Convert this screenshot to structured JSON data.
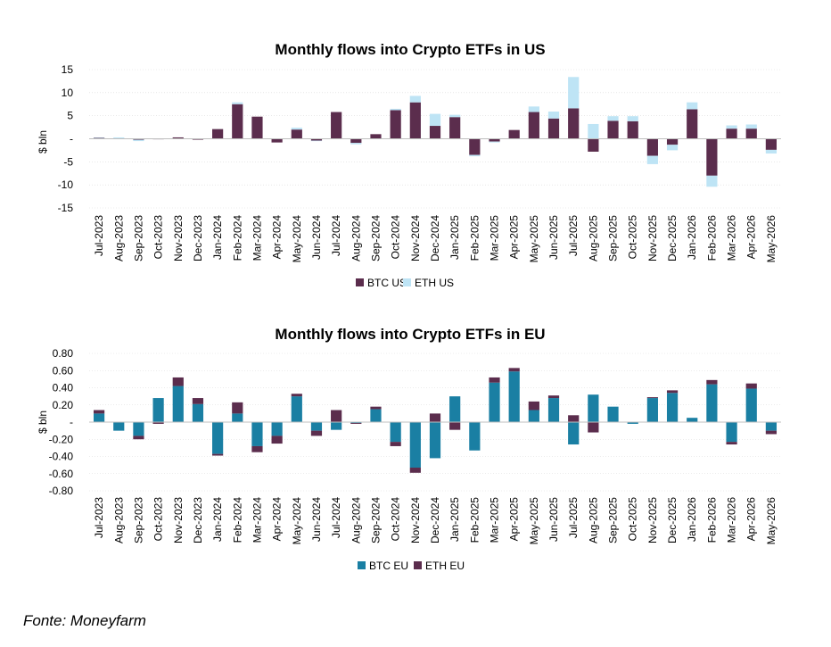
{
  "chart_data": [
    {
      "type": "bar",
      "stacked": true,
      "title": "Monthly flows into Crypto ETFs in US",
      "ylabel": "$ bln",
      "ylim": [
        -15,
        15
      ],
      "yticks": [
        15,
        10,
        5,
        0,
        -5,
        -10,
        -15
      ],
      "ytick_labels": [
        "15",
        "10",
        "5",
        "-",
        "-5",
        "-10",
        "-15"
      ],
      "grid": true,
      "legend_position": "bottom",
      "categories": [
        "Jul-2023",
        "Aug-2023",
        "Sep-2023",
        "Oct-2023",
        "Nov-2023",
        "Dec-2023",
        "Jan-2024",
        "Feb-2024",
        "Mar-2024",
        "Apr-2024",
        "May-2024",
        "Jun-2024",
        "Jul-2024",
        "Aug-2024",
        "Sep-2024",
        "Oct-2024",
        "Nov-2024",
        "Dec-2024",
        "Jan-2025",
        "Feb-2025",
        "Mar-2025",
        "Apr-2025",
        "May-2025",
        "Jun-2025",
        "Jul-2025",
        "Aug-2025",
        "Sep-2025",
        "Oct-2025",
        "Nov-2025",
        "Dec-2025",
        "Jan-2026",
        "Feb-2026",
        "Mar-2026",
        "Apr-2026",
        "May-2026"
      ],
      "series": [
        {
          "name": "BTC US",
          "color": "#5b2d4d",
          "values": [
            0.2,
            0.1,
            -0.2,
            -0.1,
            0.3,
            -0.2,
            2.1,
            7.5,
            4.8,
            -0.8,
            2.0,
            -0.4,
            5.8,
            -0.9,
            1.0,
            6.2,
            7.9,
            2.8,
            4.7,
            -3.5,
            -0.6,
            1.9,
            5.8,
            4.4,
            6.6,
            -2.8,
            3.9,
            3.8,
            -3.7,
            -1.3,
            6.4,
            -8.0,
            2.2,
            2.2,
            -2.4
          ]
        },
        {
          "name": "ETH US",
          "color": "#bee4f5",
          "values": [
            0.1,
            0.2,
            -0.3,
            0.0,
            0.0,
            0.0,
            0.0,
            0.4,
            0.0,
            0.0,
            0.4,
            -0.1,
            0.0,
            -0.3,
            0.0,
            0.3,
            1.4,
            2.6,
            0.5,
            -0.3,
            -0.2,
            0.0,
            1.2,
            1.5,
            6.8,
            3.2,
            1.0,
            1.1,
            -1.8,
            -1.2,
            1.5,
            -2.4,
            0.7,
            0.9,
            -0.8
          ]
        }
      ]
    },
    {
      "type": "bar",
      "stacked": true,
      "title": "Monthly flows into Crypto ETFs in EU",
      "ylabel": "$ bln",
      "ylim": [
        -0.8,
        0.8
      ],
      "yticks": [
        0.8,
        0.6,
        0.4,
        0.2,
        0,
        -0.2,
        -0.4,
        -0.6,
        -0.8
      ],
      "ytick_labels": [
        "0.80",
        "0.60",
        "0.40",
        "0.20",
        "-",
        "-0.20",
        "-0.40",
        "-0.60",
        "-0.80"
      ],
      "grid": true,
      "legend_position": "bottom",
      "categories": [
        "Jul-2023",
        "Aug-2023",
        "Sep-2023",
        "Oct-2023",
        "Nov-2023",
        "Dec-2023",
        "Jan-2024",
        "Feb-2024",
        "Mar-2024",
        "Apr-2024",
        "May-2024",
        "Jun-2024",
        "Jul-2024",
        "Aug-2024",
        "Sep-2024",
        "Oct-2024",
        "Nov-2024",
        "Dec-2024",
        "Jan-2025",
        "Feb-2025",
        "Mar-2025",
        "Apr-2025",
        "May-2025",
        "Jun-2025",
        "Jul-2025",
        "Aug-2025",
        "Sep-2025",
        "Oct-2025",
        "Nov-2025",
        "Dec-2025",
        "Jan-2026",
        "Feb-2026",
        "Mar-2026",
        "Apr-2026",
        "May-2026"
      ],
      "series": [
        {
          "name": "BTC EU",
          "color": "#1a7fa3",
          "values": [
            0.1,
            -0.1,
            -0.16,
            0.28,
            0.42,
            0.21,
            -0.37,
            0.1,
            -0.28,
            -0.16,
            0.3,
            -0.1,
            -0.09,
            -0.01,
            0.15,
            -0.23,
            -0.53,
            -0.42,
            0.3,
            -0.33,
            0.46,
            0.59,
            0.14,
            0.28,
            -0.26,
            0.32,
            0.18,
            -0.02,
            0.28,
            0.34,
            0.05,
            0.44,
            -0.23,
            0.39,
            -0.1
          ]
        },
        {
          "name": "ETH EU",
          "color": "#5b2d4d",
          "values": [
            0.04,
            0.0,
            -0.04,
            -0.02,
            0.1,
            0.07,
            -0.02,
            0.13,
            -0.07,
            -0.09,
            0.03,
            -0.06,
            0.14,
            -0.01,
            0.03,
            -0.05,
            -0.06,
            0.1,
            -0.09,
            0.0,
            0.06,
            0.04,
            0.1,
            0.03,
            0.08,
            -0.12,
            0.0,
            0.0,
            0.01,
            0.03,
            0.0,
            0.05,
            -0.03,
            0.06,
            -0.04
          ]
        }
      ]
    }
  ],
  "source": "Fonte: Moneyfarm"
}
